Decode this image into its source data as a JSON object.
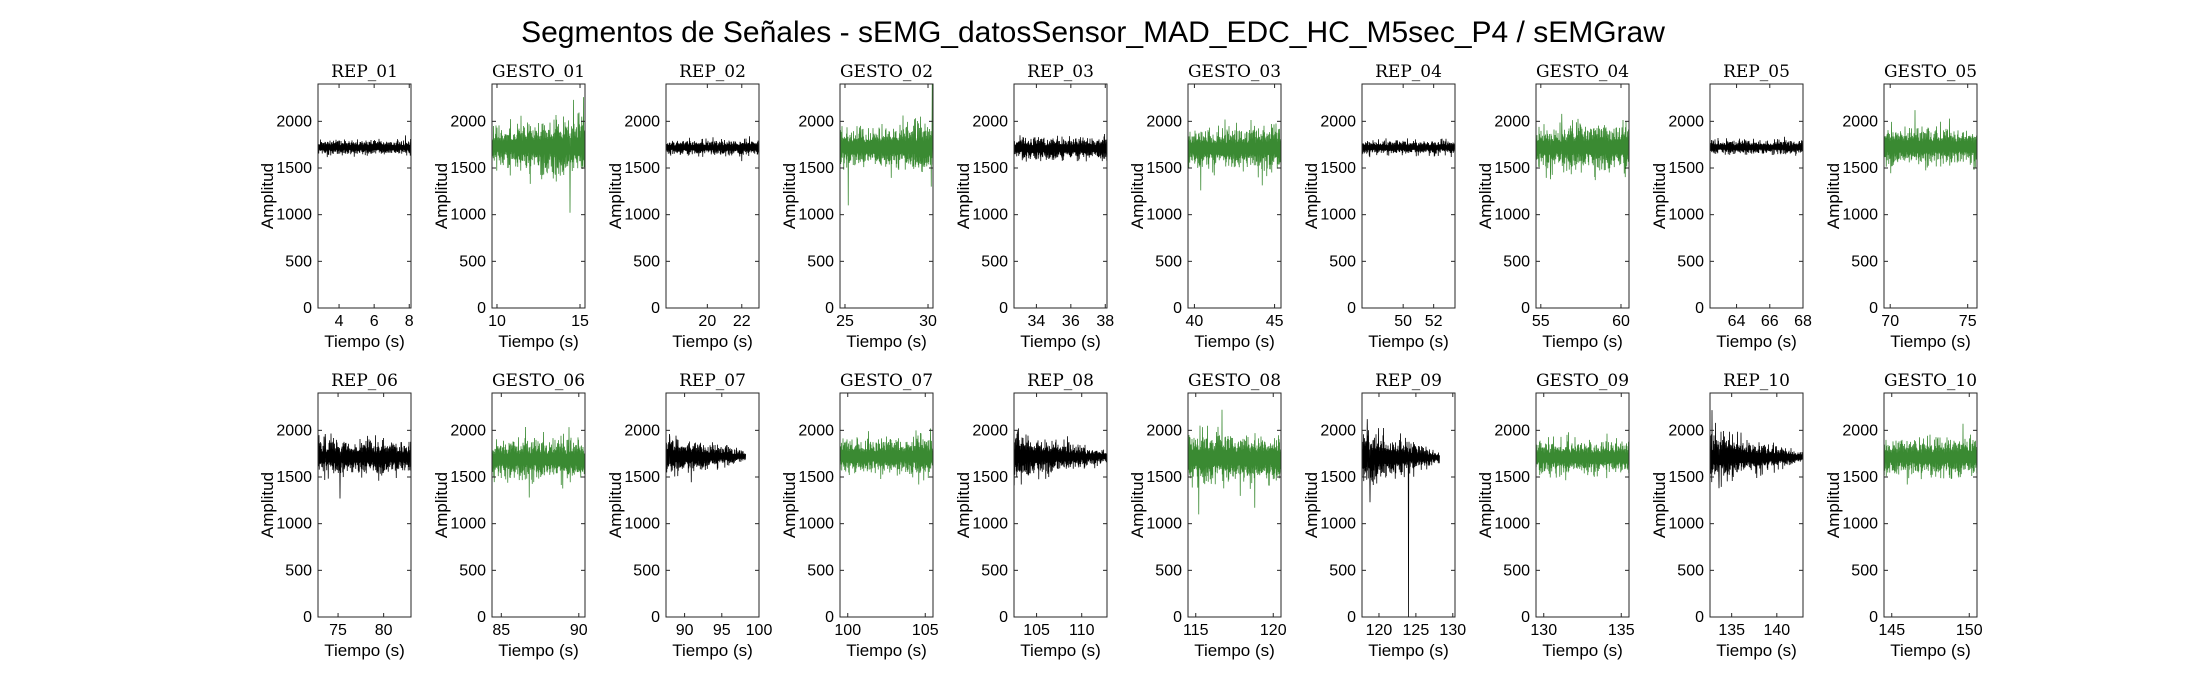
{
  "figure": {
    "title": "Segmentos de Señales - sEMG_datosSensor_MAD_EDC_HC_M5sec_P4 / sEMGraw",
    "colors": {
      "rep": "#000000",
      "gesto": "#3a8a32"
    }
  },
  "chart_data": [
    {
      "type": "line",
      "title": "REP_01",
      "kind": "rep",
      "xlabel": "Tiempo (s)",
      "ylabel": "Amplitud",
      "xlim": [
        2.8,
        8.1
      ],
      "ylim": [
        0,
        2400
      ],
      "xticks": [
        4,
        6,
        8
      ],
      "yticks": [
        0,
        500,
        1000,
        1500,
        2000
      ],
      "t_start": 2.8,
      "t_end": 8.1,
      "baseline": 1720,
      "amp": [
        60,
        60
      ],
      "spikes": []
    },
    {
      "type": "line",
      "title": "GESTO_01",
      "kind": "gesto",
      "xlabel": "Tiempo (s)",
      "ylabel": "Amplitud",
      "xlim": [
        9.7,
        15.3
      ],
      "ylim": [
        0,
        2400
      ],
      "xticks": [
        10,
        15
      ],
      "yticks": [
        0,
        500,
        1000,
        1500,
        2000
      ],
      "t_start": 9.7,
      "t_end": 15.3,
      "baseline": 1730,
      "amp": [
        140,
        260
      ],
      "spikes": [
        [
          14.4,
          1020
        ],
        [
          14.6,
          2230
        ],
        [
          15.1,
          2050
        ],
        [
          10.8,
          1420
        ]
      ]
    },
    {
      "type": "line",
      "title": "REP_02",
      "kind": "rep",
      "xlabel": "Tiempo (s)",
      "ylabel": "Amplitud",
      "xlim": [
        17.6,
        23.0
      ],
      "ylim": [
        0,
        2400
      ],
      "xticks": [
        20,
        22
      ],
      "yticks": [
        0,
        500,
        1000,
        1500,
        2000
      ],
      "t_start": 17.6,
      "t_end": 23.0,
      "baseline": 1720,
      "amp": [
        60,
        60
      ],
      "spikes": []
    },
    {
      "type": "line",
      "title": "GESTO_02",
      "kind": "gesto",
      "xlabel": "Tiempo (s)",
      "ylabel": "Amplitud",
      "xlim": [
        24.7,
        30.3
      ],
      "ylim": [
        0,
        2400
      ],
      "xticks": [
        25,
        30
      ],
      "yticks": [
        0,
        500,
        1000,
        1500,
        2000
      ],
      "t_start": 24.7,
      "t_end": 30.3,
      "baseline": 1720,
      "amp": [
        150,
        200
      ],
      "spikes": [
        [
          25.2,
          1100
        ],
        [
          30.25,
          2400
        ],
        [
          30.2,
          1300
        ]
      ]
    },
    {
      "type": "line",
      "title": "REP_03",
      "kind": "rep",
      "xlabel": "Tiempo (s)",
      "ylabel": "Amplitud",
      "xlim": [
        32.7,
        38.1
      ],
      "ylim": [
        0,
        2400
      ],
      "xticks": [
        34,
        36,
        38
      ],
      "yticks": [
        0,
        500,
        1000,
        1500,
        2000
      ],
      "t_start": 32.7,
      "t_end": 38.1,
      "baseline": 1710,
      "amp": [
        90,
        90
      ],
      "spikes": []
    },
    {
      "type": "line",
      "title": "GESTO_03",
      "kind": "gesto",
      "xlabel": "Tiempo (s)",
      "ylabel": "Amplitud",
      "xlim": [
        39.6,
        45.4
      ],
      "ylim": [
        0,
        2400
      ],
      "xticks": [
        40,
        45
      ],
      "yticks": [
        0,
        500,
        1000,
        1500,
        2000
      ],
      "t_start": 39.6,
      "t_end": 45.4,
      "baseline": 1710,
      "amp": [
        140,
        180
      ],
      "spikes": [
        [
          40.4,
          1260
        ]
      ]
    },
    {
      "type": "line",
      "title": "REP_04",
      "kind": "rep",
      "xlabel": "Tiempo (s)",
      "ylabel": "Amplitud",
      "xlim": [
        47.3,
        53.4
      ],
      "ylim": [
        0,
        2400
      ],
      "xticks": [
        50,
        52
      ],
      "yticks": [
        0,
        500,
        1000,
        1500,
        2000
      ],
      "t_start": 47.3,
      "t_end": 53.4,
      "baseline": 1720,
      "amp": [
        55,
        55
      ],
      "spikes": []
    },
    {
      "type": "line",
      "title": "GESTO_04",
      "kind": "gesto",
      "xlabel": "Tiempo (s)",
      "ylabel": "Amplitud",
      "xlim": [
        54.7,
        60.5
      ],
      "ylim": [
        0,
        2400
      ],
      "xticks": [
        55,
        60
      ],
      "yticks": [
        0,
        500,
        1000,
        1500,
        2000
      ],
      "t_start": 54.7,
      "t_end": 60.5,
      "baseline": 1720,
      "amp": [
        170,
        190
      ],
      "spikes": [
        [
          56.3,
          2080
        ],
        [
          55.6,
          1380
        ]
      ]
    },
    {
      "type": "line",
      "title": "REP_05",
      "kind": "rep",
      "xlabel": "Tiempo (s)",
      "ylabel": "Amplitud",
      "xlim": [
        62.4,
        68.0
      ],
      "ylim": [
        0,
        2400
      ],
      "xticks": [
        64,
        66,
        68
      ],
      "yticks": [
        0,
        500,
        1000,
        1500,
        2000
      ],
      "t_start": 62.4,
      "t_end": 68.0,
      "baseline": 1720,
      "amp": [
        55,
        55
      ],
      "spikes": []
    },
    {
      "type": "line",
      "title": "GESTO_05",
      "kind": "gesto",
      "xlabel": "Tiempo (s)",
      "ylabel": "Amplitud",
      "xlim": [
        69.6,
        75.6
      ],
      "ylim": [
        0,
        2400
      ],
      "xticks": [
        70,
        75
      ],
      "yticks": [
        0,
        500,
        1000,
        1500,
        2000
      ],
      "t_start": 69.6,
      "t_end": 75.6,
      "baseline": 1730,
      "amp": [
        170,
        130
      ],
      "spikes": [
        [
          71.6,
          2120
        ],
        [
          75.4,
          1480
        ]
      ]
    },
    {
      "type": "line",
      "title": "REP_06",
      "kind": "rep",
      "xlabel": "Tiempo (s)",
      "ylabel": "Amplitud",
      "xlim": [
        72.8,
        83.0
      ],
      "ylim": [
        0,
        2400
      ],
      "xticks": [
        75,
        80
      ],
      "yticks": [
        0,
        500,
        1000,
        1500,
        2000
      ],
      "t_start": 72.8,
      "t_end": 83.0,
      "baseline": 1710,
      "amp": [
        150,
        120
      ],
      "spikes": [
        [
          75.2,
          1270
        ],
        [
          73.6,
          1960
        ]
      ]
    },
    {
      "type": "line",
      "title": "GESTO_06",
      "kind": "gesto",
      "xlabel": "Tiempo (s)",
      "ylabel": "Amplitud",
      "xlim": [
        84.4,
        90.4
      ],
      "ylim": [
        0,
        2400
      ],
      "xticks": [
        85,
        90
      ],
      "yticks": [
        0,
        500,
        1000,
        1500,
        2000
      ],
      "t_start": 84.4,
      "t_end": 90.4,
      "baseline": 1690,
      "amp": [
        150,
        170
      ],
      "spikes": [
        [
          86.8,
          1280
        ]
      ]
    },
    {
      "type": "line",
      "title": "REP_07",
      "kind": "rep",
      "xlabel": "Tiempo (s)",
      "ylabel": "Amplitud",
      "xlim": [
        87.5,
        100.0
      ],
      "ylim": [
        0,
        2400
      ],
      "xticks": [
        90,
        95,
        100
      ],
      "yticks": [
        0,
        500,
        1000,
        1500,
        2000
      ],
      "t_start": 87.5,
      "t_end": 98.2,
      "baseline": 1720,
      "amp": [
        160,
        50
      ],
      "spikes": [
        [
          88.0,
          1930
        ]
      ]
    },
    {
      "type": "line",
      "title": "GESTO_07",
      "kind": "gesto",
      "xlabel": "Tiempo (s)",
      "ylabel": "Amplitud",
      "xlim": [
        99.5,
        105.5
      ],
      "ylim": [
        0,
        2400
      ],
      "xticks": [
        100,
        105
      ],
      "yticks": [
        0,
        500,
        1000,
        1500,
        2000
      ],
      "t_start": 99.5,
      "t_end": 105.5,
      "baseline": 1720,
      "amp": [
        130,
        160
      ],
      "spikes": [
        [
          104.4,
          2000
        ]
      ]
    },
    {
      "type": "line",
      "title": "REP_08",
      "kind": "rep",
      "xlabel": "Tiempo (s)",
      "ylabel": "Amplitud",
      "xlim": [
        102.5,
        112.8
      ],
      "ylim": [
        0,
        2400
      ],
      "xticks": [
        105,
        110
      ],
      "yticks": [
        0,
        500,
        1000,
        1500,
        2000
      ],
      "t_start": 102.5,
      "t_end": 112.8,
      "baseline": 1720,
      "amp": [
        190,
        50
      ],
      "spikes": [
        [
          102.9,
          1990
        ],
        [
          103.3,
          1420
        ]
      ]
    },
    {
      "type": "line",
      "title": "GESTO_08",
      "kind": "gesto",
      "xlabel": "Tiempo (s)",
      "ylabel": "Amplitud",
      "xlim": [
        114.5,
        120.5
      ],
      "ylim": [
        0,
        2400
      ],
      "xticks": [
        115,
        120
      ],
      "yticks": [
        0,
        500,
        1000,
        1500,
        2000
      ],
      "t_start": 114.5,
      "t_end": 120.5,
      "baseline": 1700,
      "amp": [
        200,
        190
      ],
      "spikes": [
        [
          115.2,
          1100
        ],
        [
          116.7,
          2220
        ],
        [
          118.8,
          1170
        ]
      ]
    },
    {
      "type": "line",
      "title": "REP_09",
      "kind": "rep",
      "xlabel": "Tiempo (s)",
      "ylabel": "Amplitud",
      "xlim": [
        117.7,
        130.3
      ],
      "ylim": [
        0,
        2400
      ],
      "xticks": [
        120,
        125,
        130
      ],
      "yticks": [
        0,
        500,
        1000,
        1500,
        2000
      ],
      "t_start": 117.7,
      "t_end": 128.2,
      "baseline": 1710,
      "amp": [
        230,
        40
      ],
      "spikes": [
        [
          118.4,
          2120
        ],
        [
          118.8,
          1230
        ],
        [
          124.0,
          0
        ]
      ]
    },
    {
      "type": "line",
      "title": "GESTO_09",
      "kind": "gesto",
      "xlabel": "Tiempo (s)",
      "ylabel": "Amplitud",
      "xlim": [
        129.5,
        135.5
      ],
      "ylim": [
        0,
        2400
      ],
      "xticks": [
        130,
        135
      ],
      "yticks": [
        0,
        500,
        1000,
        1500,
        2000
      ],
      "t_start": 129.5,
      "t_end": 135.5,
      "baseline": 1710,
      "amp": [
        140,
        130
      ],
      "spikes": [
        [
          131.6,
          1980
        ]
      ]
    },
    {
      "type": "line",
      "title": "REP_10",
      "kind": "rep",
      "xlabel": "Tiempo (s)",
      "ylabel": "Amplitud",
      "xlim": [
        132.6,
        142.9
      ],
      "ylim": [
        0,
        2400
      ],
      "xticks": [
        135,
        140
      ],
      "yticks": [
        0,
        500,
        1000,
        1500,
        2000
      ],
      "t_start": 132.6,
      "t_end": 142.9,
      "baseline": 1710,
      "amp": [
        200,
        45
      ],
      "spikes": [
        [
          133.2,
          2080
        ],
        [
          133.6,
          1380
        ]
      ]
    },
    {
      "type": "line",
      "title": "GESTO_10",
      "kind": "gesto",
      "xlabel": "Tiempo (s)",
      "ylabel": "Amplitud",
      "xlim": [
        144.5,
        150.5
      ],
      "ylim": [
        0,
        2400
      ],
      "xticks": [
        145,
        150
      ],
      "yticks": [
        0,
        500,
        1000,
        1500,
        2000
      ],
      "t_start": 144.5,
      "t_end": 150.5,
      "baseline": 1710,
      "amp": [
        130,
        160
      ],
      "spikes": [
        [
          149.6,
          2070
        ],
        [
          146.0,
          1420
        ]
      ]
    }
  ]
}
